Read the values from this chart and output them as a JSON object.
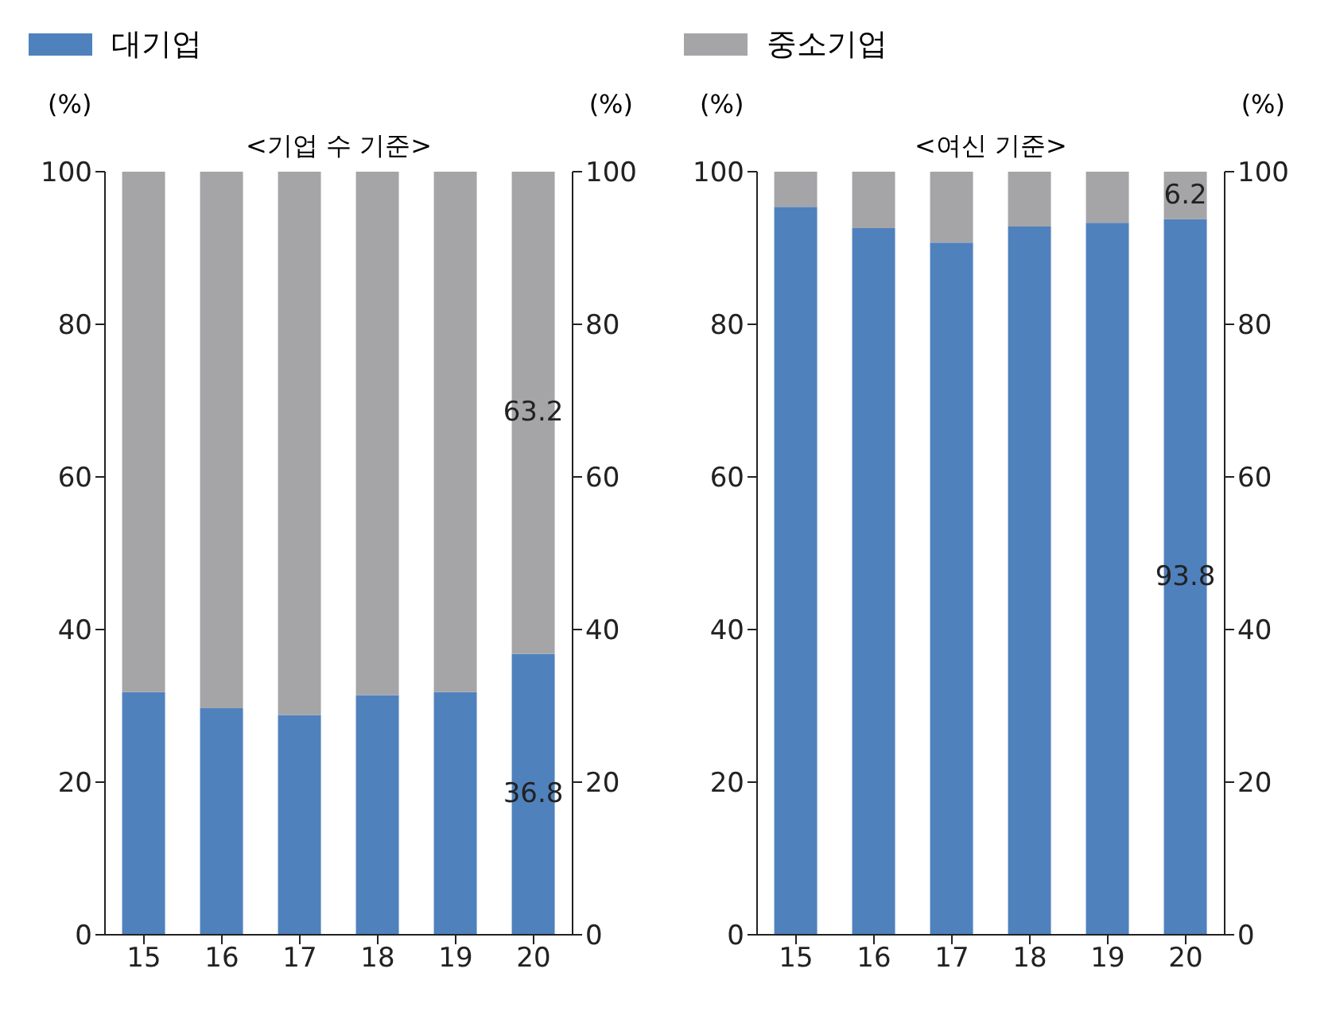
{
  "chart_data": [
    {
      "type": "bar",
      "title": "<기업 수 기준>",
      "ylabel": "(%)",
      "y2label": "(%)",
      "categories": [
        "15",
        "16",
        "17",
        "18",
        "19",
        "20"
      ],
      "stacked": true,
      "legend": "top",
      "ylim": [
        0,
        100
      ],
      "yticks": [
        0,
        20,
        40,
        60,
        80,
        100
      ],
      "y2lim": [
        0,
        100
      ],
      "y2ticks": [
        0,
        20,
        40,
        60,
        80,
        100
      ],
      "series": [
        {
          "name": "대기업",
          "color": "#4f81bd",
          "values": [
            31.8,
            29.7,
            28.8,
            31.4,
            31.8,
            36.8
          ],
          "value_labels": [
            null,
            null,
            null,
            null,
            null,
            "36.8"
          ]
        },
        {
          "name": "중소기업",
          "color": "#a5a5a8",
          "values": [
            68.2,
            70.3,
            71.2,
            68.6,
            68.2,
            63.2
          ],
          "value_labels": [
            null,
            null,
            null,
            null,
            null,
            "63.2"
          ]
        }
      ]
    },
    {
      "type": "bar",
      "title": "<여신 기준>",
      "ylabel": "(%)",
      "y2label": "(%)",
      "categories": [
        "15",
        "16",
        "17",
        "18",
        "19",
        "20"
      ],
      "stacked": true,
      "ylim": [
        0,
        100
      ],
      "yticks": [
        0,
        20,
        40,
        60,
        80,
        100
      ],
      "y2lim": [
        0,
        100
      ],
      "y2ticks": [
        0,
        20,
        40,
        60,
        80,
        100
      ],
      "series": [
        {
          "color": "#4f81bd",
          "values": [
            95.4,
            92.6,
            90.7,
            92.8,
            93.3,
            93.8
          ],
          "value_labels": [
            null,
            null,
            null,
            null,
            null,
            "93.8"
          ]
        },
        {
          "color": "#a5a5a8",
          "values": [
            4.6,
            7.4,
            9.3,
            7.2,
            6.7,
            6.2
          ],
          "value_labels": [
            null,
            null,
            null,
            null,
            null,
            "6.2"
          ]
        }
      ]
    }
  ]
}
